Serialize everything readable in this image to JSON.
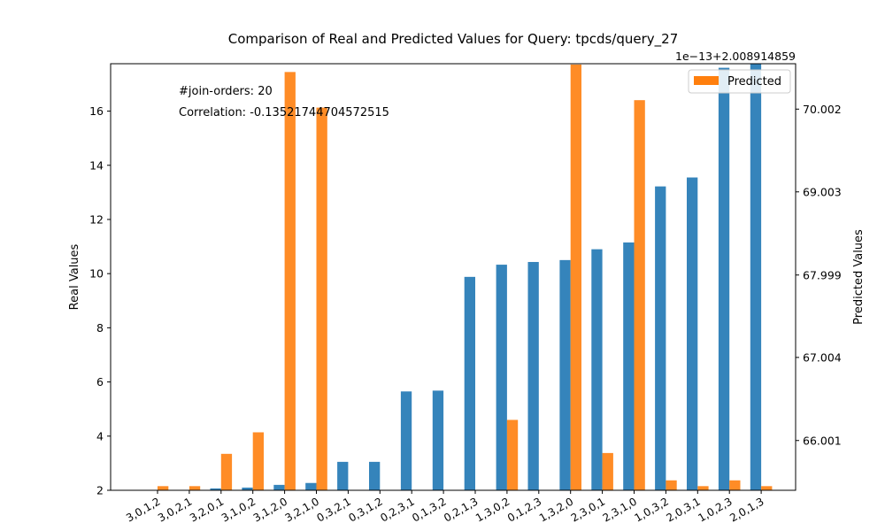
{
  "chart_data": {
    "type": "bar",
    "title": "Comparison of Real and Predicted Values for Query: tpcds/query_27",
    "xlabel": "",
    "ylabel": "Real Values",
    "y2label": "Predicted Values",
    "y2_offset_label": "1e−13+2.008914859",
    "categories": [
      "3,0,1,2",
      "3,0,2,1",
      "3,2,0,1",
      "3,1,0,2",
      "3,1,2,0",
      "3,2,1,0",
      "0,3,2,1",
      "0,3,1,2",
      "0,2,3,1",
      "0,1,3,2",
      "0,2,1,3",
      "1,3,0,2",
      "0,1,2,3",
      "1,3,2,0",
      "2,3,0,1",
      "2,3,1,0",
      "1,0,3,2",
      "2,0,3,1",
      "1,0,2,3",
      "2,0,1,3"
    ],
    "series": [
      {
        "axis": "left",
        "color": "#1f77b4",
        "values": [
          1.92,
          1.95,
          2.07,
          2.1,
          2.2,
          2.27,
          3.05,
          3.05,
          5.65,
          5.68,
          9.88,
          10.33,
          10.43,
          10.5,
          10.9,
          11.15,
          13.22,
          13.55,
          17.6,
          17.8
        ]
      },
      {
        "name": "Predicted",
        "axis": "right",
        "color": "#ff7f0e",
        "values": [
          65.45,
          65.45,
          65.84,
          66.1,
          70.45,
          70.02,
          65.35,
          65.35,
          65.35,
          65.35,
          65.35,
          66.25,
          65.35,
          70.54,
          65.85,
          70.11,
          65.52,
          65.45,
          65.52,
          65.45
        ]
      }
    ],
    "ylim": [
      2,
      17.75
    ],
    "y2lim": [
      65.4,
      70.55
    ],
    "yticks": [
      2,
      4,
      6,
      8,
      10,
      12,
      14,
      16
    ],
    "y2ticks": [
      66.001,
      67.004,
      67.999,
      69.003,
      70.002
    ],
    "legend": "top-right",
    "grid": false,
    "annotations": [
      "#join-orders: 20",
      "Correlation: -0.13521744704572515"
    ]
  }
}
